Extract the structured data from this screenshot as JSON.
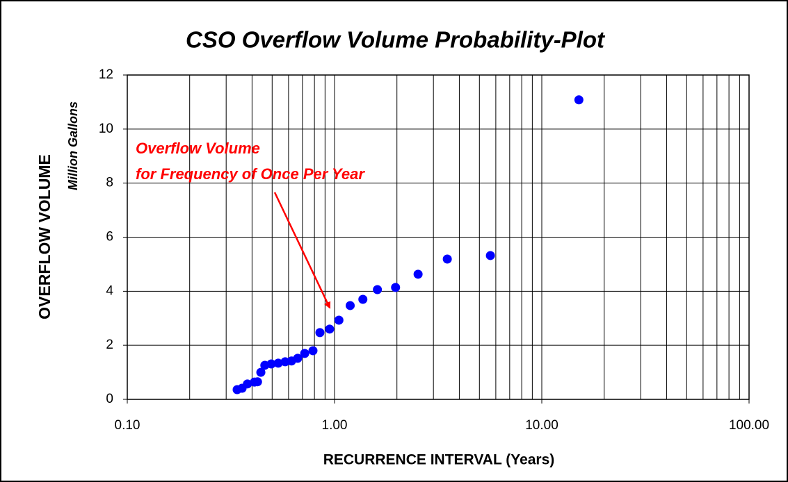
{
  "chart_data": {
    "type": "scatter",
    "title": "CSO Overflow Volume Probability-Plot",
    "x_label": "RECURRENCE INTERVAL (Years)",
    "y_label": "OVERFLOW VOLUME",
    "y_sublabel": "Million Gallons",
    "annotation_lines": [
      "Overflow Volume",
      "for Frequency of Once Per Year"
    ],
    "annotation_color": "#ff0000",
    "x": [
      0.339,
      0.358,
      0.38,
      0.411,
      0.425,
      0.441,
      0.461,
      0.495,
      0.535,
      0.578,
      0.62,
      0.664,
      0.718,
      0.787,
      0.85,
      0.947,
      1.05,
      1.19,
      1.37,
      1.61,
      1.97,
      2.53,
      3.5,
      5.65,
      15.1
    ],
    "values": [
      0.36,
      0.41,
      0.57,
      0.64,
      0.65,
      1.0,
      1.26,
      1.31,
      1.34,
      1.39,
      1.42,
      1.52,
      1.7,
      1.8,
      2.47,
      2.6,
      2.93,
      3.47,
      3.7,
      4.06,
      4.14,
      4.63,
      5.19,
      5.32,
      11.08
    ],
    "color": "#0000ff",
    "x_log": true,
    "xlim": [
      0.1,
      100
    ],
    "xticks": [
      {
        "value": 0.1,
        "label": "0.10"
      },
      {
        "value": 1,
        "label": "1.00"
      },
      {
        "value": 10,
        "label": "10.00"
      },
      {
        "value": 100,
        "label": "100.00"
      }
    ],
    "ylim": [
      0,
      12
    ],
    "yticks": [
      0,
      2,
      4,
      6,
      8,
      10,
      12
    ],
    "grid": true,
    "minor_grid": true
  }
}
